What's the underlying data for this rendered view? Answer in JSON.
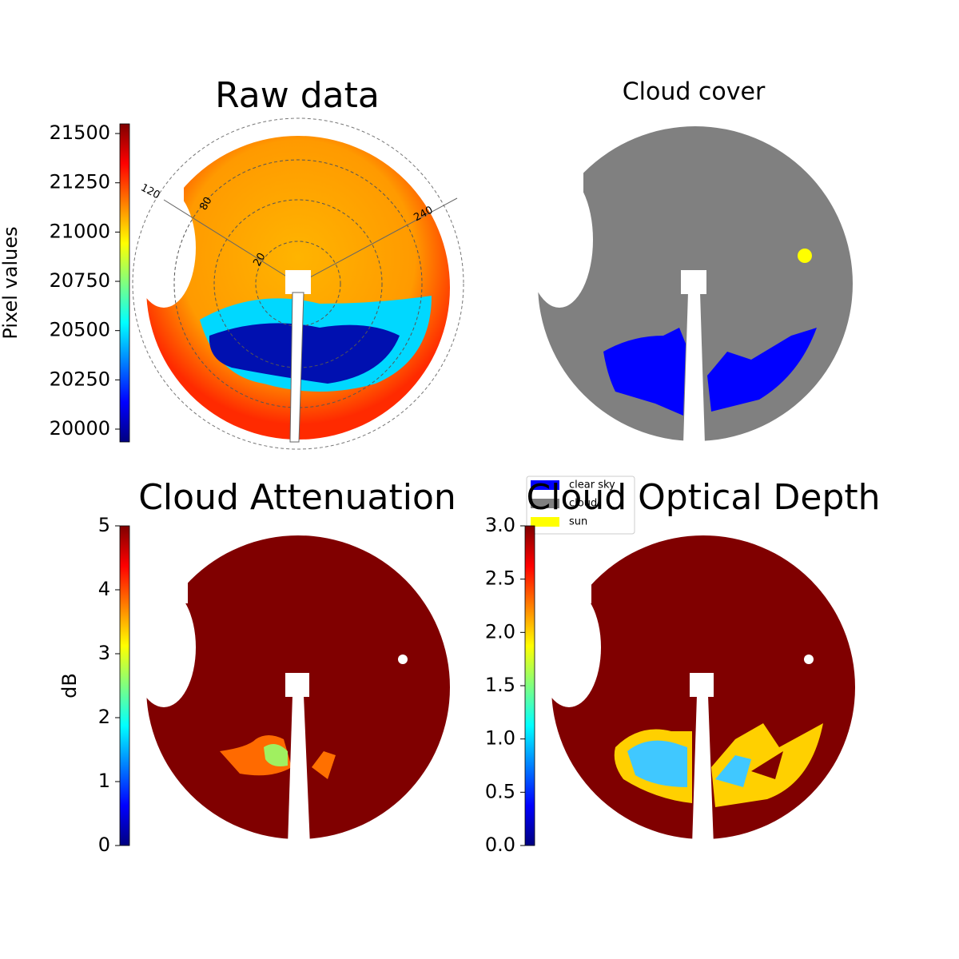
{
  "chart_data": [
    {
      "type": "image",
      "title": "Raw data",
      "colorbar": {
        "label": "Pixel values",
        "colormap": "jet",
        "ylim": [
          19935,
          21549
        ],
        "yticks": [
          20000,
          20250,
          20500,
          20750,
          21000,
          21250,
          21500
        ]
      },
      "polar_labels": {
        "azimuth": [
          120,
          240
        ],
        "radius": [
          80,
          20
        ]
      }
    },
    {
      "type": "image",
      "title": "Cloud cover",
      "series": [
        {
          "name": "clear sky",
          "color": "#0000ff"
        },
        {
          "name": "cloud",
          "color": "#808080"
        },
        {
          "name": "sun",
          "color": "#ffff00"
        }
      ]
    },
    {
      "type": "image",
      "title": "Cloud Attenuation",
      "colorbar": {
        "label": "dB",
        "colormap": "jet",
        "ylim": [
          0,
          5
        ],
        "yticks": [
          0,
          1,
          2,
          3,
          4,
          5
        ]
      }
    },
    {
      "type": "image",
      "title": "Cloud Optical Depth",
      "colorbar": {
        "colormap": "jet",
        "ylim": [
          0,
          3
        ],
        "yticks": [
          {
            "value": 0,
            "label": "0.0"
          },
          0.5,
          {
            "value": 1,
            "label": "1.0"
          },
          1.5,
          {
            "value": 2,
            "label": "2.0"
          },
          2.5,
          {
            "value": 3,
            "label": "3.0"
          }
        ]
      }
    }
  ]
}
